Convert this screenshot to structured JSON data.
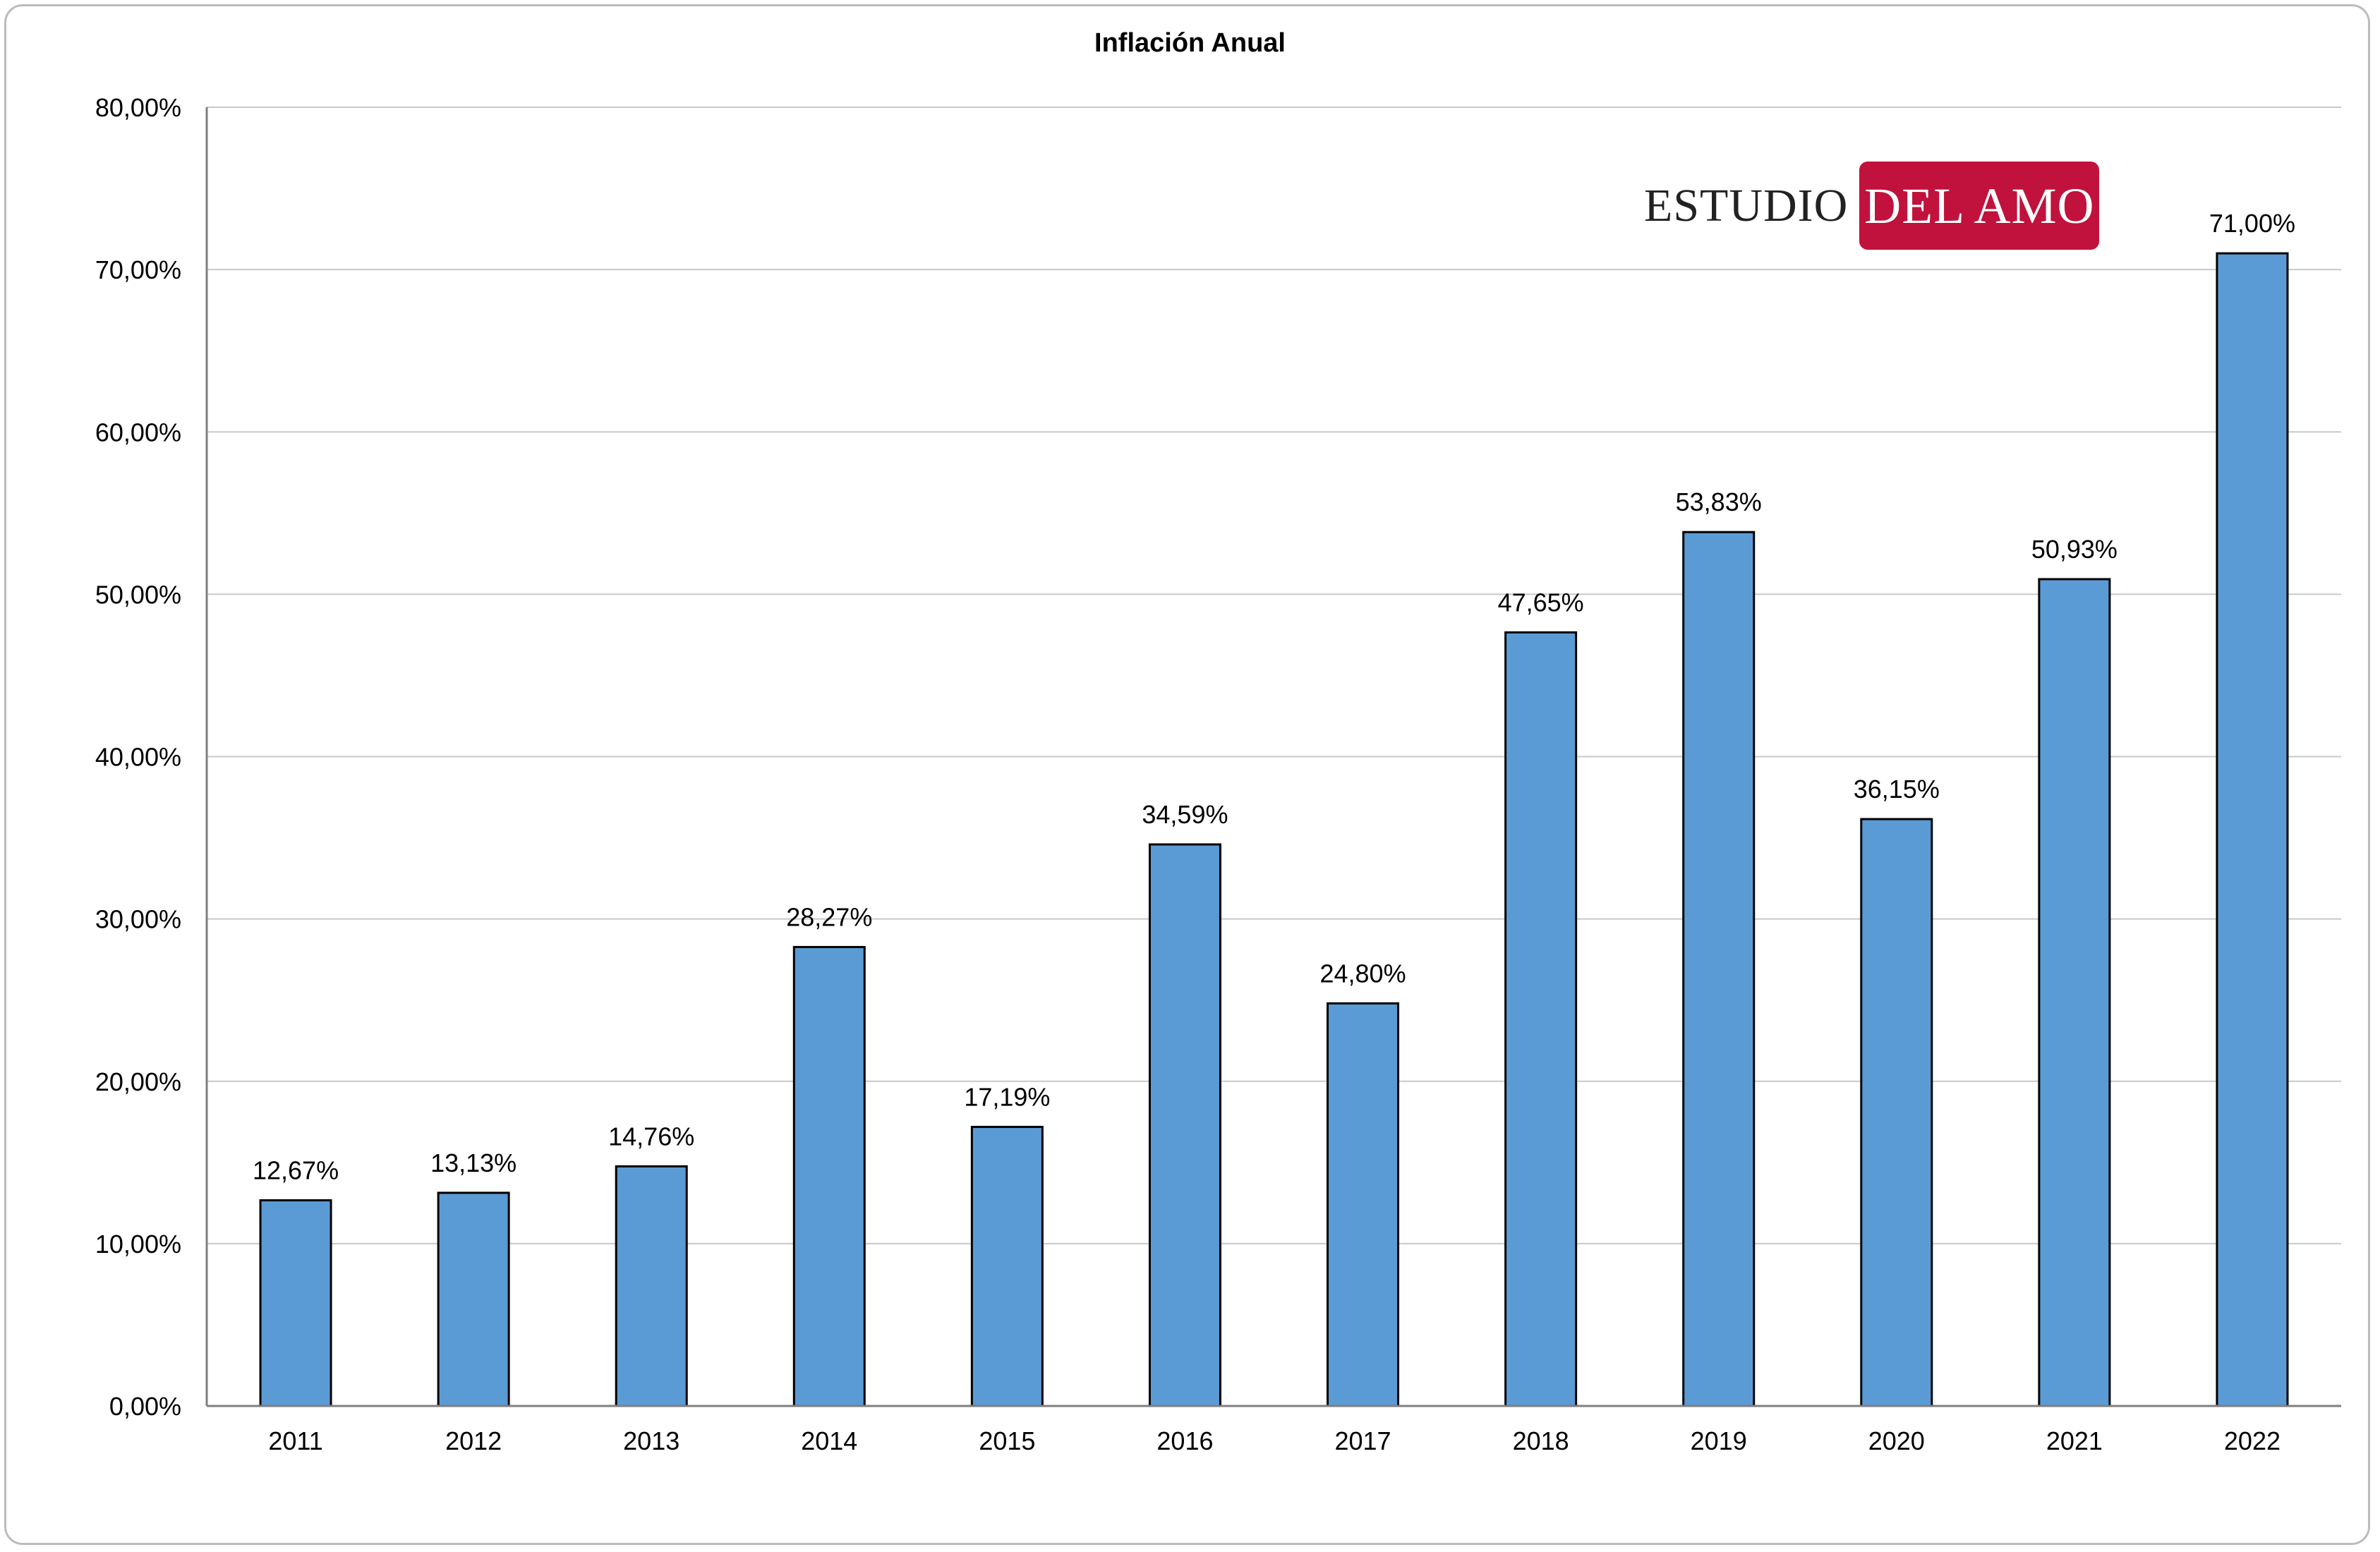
{
  "chart_data": {
    "type": "bar",
    "title": "Inflación Anual",
    "categories": [
      "2011",
      "2012",
      "2013",
      "2014",
      "2015",
      "2016",
      "2017",
      "2018",
      "2019",
      "2020",
      "2021",
      "2022"
    ],
    "values": [
      12.67,
      13.13,
      14.76,
      28.27,
      17.19,
      34.59,
      24.8,
      47.65,
      53.83,
      36.15,
      50.93,
      71.0
    ],
    "data_labels": [
      "12,67%",
      "13,13%",
      "14,76%",
      "28,27%",
      "17,19%",
      "34,59%",
      "24,80%",
      "47,65%",
      "53,83%",
      "36,15%",
      "50,93%",
      "71,00%"
    ],
    "y_ticks": [
      0,
      10,
      20,
      30,
      40,
      50,
      60,
      70,
      80
    ],
    "y_tick_labels": [
      "0,00%",
      "10,00%",
      "20,00%",
      "30,00%",
      "40,00%",
      "50,00%",
      "60,00%",
      "70,00%",
      "80,00%"
    ],
    "ylim": [
      0,
      80
    ],
    "xlabel": "",
    "ylabel": "",
    "grid": true,
    "legend": "none",
    "bar_color": "#5b9bd5",
    "bar_edge_color": "#000000",
    "grid_color": "#c8c8c8"
  },
  "logo": {
    "left_text": "ESTUDIO",
    "right_text": "DEL AMO",
    "accent_color": "#c0123c"
  }
}
